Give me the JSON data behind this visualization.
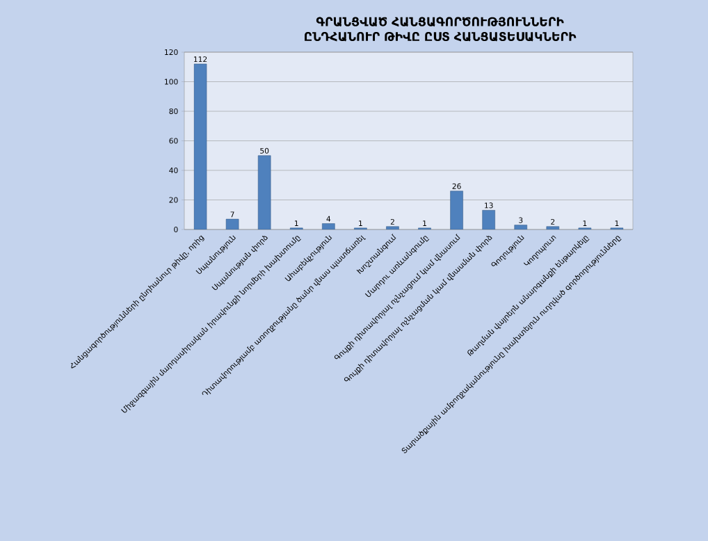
{
  "chart_data": {
    "type": "bar",
    "title": "ԳՐԱՆՑՎԱԾ ՀԱՆՑԱԳՈՐԾՈՒԹՅՈՒՆՆԵՐԻ ԸՆԴՀԱՆՈՒՐ ԹԻՎԸ ԸՍՏ ՀԱՆՑԱՏԵՍԱԿՆԵՐԻ",
    "categories": [
      "Հանցագործությունների ընդհանուր թիվը, որից",
      "Սպանություն",
      "Սպանության փորձ",
      "Միջազգային մարդասիրական իրավունքի նորմերի խախտումը",
      "Ահաբեկչություն",
      "Դիտավորությամբ առողջությանը ծանր վնաս պատճառել",
      "Խոշտանգում",
      "Մարդու առևանգումը",
      "Գույքի դիտավորյալ ոչնչացում կամ վնասում",
      "Գույքի դիտավորյալ ոչնչացման կամ վնասման փորձ",
      "Գողություն",
      "Կողոպուտ",
      "Թաղման վայրերն անարգանքի ենթարկելը",
      "Տարածքային ամբողջականությունը խախտելուն ուղղված գործողությունները"
    ],
    "values": [
      112,
      7,
      50,
      1,
      4,
      1,
      2,
      1,
      26,
      13,
      3,
      2,
      1,
      1
    ],
    "color": "#4f81bd",
    "ylim": [
      0,
      120
    ],
    "yticks": [
      0,
      20,
      40,
      60,
      80,
      100,
      120
    ],
    "grid": "y",
    "data_labels": true
  }
}
